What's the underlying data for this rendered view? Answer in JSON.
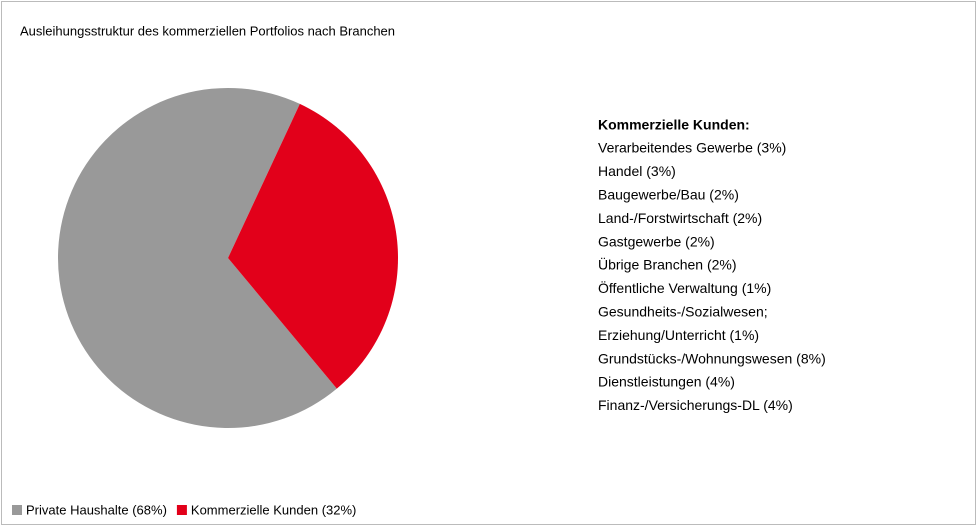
{
  "chart_data": {
    "type": "pie",
    "title": "Ausleihungsstruktur des kommerziellen Portfolios nach Branchen",
    "categories": [
      "Private Haushalte (68%)",
      "Kommerzielle Kunden (32%)"
    ],
    "values": [
      68,
      32
    ],
    "colors": [
      "#999999",
      "#e2001a"
    ],
    "legend": "bottom-left",
    "breakdown": {
      "title": "Kommerzielle Kunden:",
      "items": [
        "Verarbeitendes Gewerbe (3%)",
        "Handel (3%)",
        "Baugewerbe/Bau (2%)",
        "Land-/Forstwirtschaft (2%)",
        "Gastgewerbe (2%)",
        "Übrige Branchen (2%)",
        "Öffentliche Verwaltung (1%)",
        "Gesundheits-/Sozialwesen;",
        "Erziehung/Unterricht (1%)",
        "Grundstücks-/Wohnungswesen (8%)",
        "Dienstleistungen (4%)",
        "Finanz-/Versicherungs-DL (4%)"
      ]
    }
  }
}
